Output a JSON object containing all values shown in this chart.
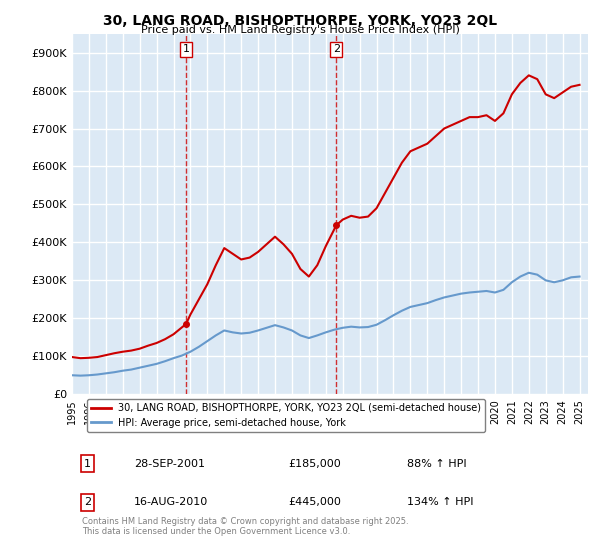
{
  "title": "30, LANG ROAD, BISHOPTHORPE, YORK, YO23 2QL",
  "subtitle": "Price paid vs. HM Land Registry's House Price Index (HPI)",
  "xlabel": "",
  "ylabel": "",
  "background_color": "#dce9f5",
  "plot_bg_color": "#dce9f5",
  "grid_color": "#ffffff",
  "ylim": [
    0,
    950000
  ],
  "yticks": [
    0,
    100000,
    200000,
    300000,
    400000,
    500000,
    600000,
    700000,
    800000,
    900000
  ],
  "ytick_labels": [
    "£0",
    "£100K",
    "£200K",
    "£300K",
    "£400K",
    "£500K",
    "£600K",
    "£700K",
    "£800K",
    "£900K"
  ],
  "xlim_start": 1995.0,
  "xlim_end": 2025.5,
  "sale1_x": 2001.74,
  "sale1_y": 185000,
  "sale1_label": "1",
  "sale1_date": "28-SEP-2001",
  "sale1_price": "£185,000",
  "sale1_hpi": "88% ↑ HPI",
  "sale2_x": 2010.62,
  "sale2_y": 445000,
  "sale2_label": "2",
  "sale2_date": "16-AUG-2010",
  "sale2_price": "£445,000",
  "sale2_hpi": "134% ↑ HPI",
  "legend_line1": "30, LANG ROAD, BISHOPTHORPE, YORK, YO23 2QL (semi-detached house)",
  "legend_line2": "HPI: Average price, semi-detached house, York",
  "footer": "Contains HM Land Registry data © Crown copyright and database right 2025.\nThis data is licensed under the Open Government Licence v3.0.",
  "red_line_color": "#cc0000",
  "blue_line_color": "#6699cc",
  "hpi_red_points_x": [
    1995.0,
    1995.5,
    1996.0,
    1996.5,
    1997.0,
    1997.5,
    1998.0,
    1998.5,
    1999.0,
    1999.5,
    2000.0,
    2000.5,
    2001.0,
    2001.74,
    2002.0,
    2002.5,
    2003.0,
    2003.5,
    2004.0,
    2004.5,
    2005.0,
    2005.5,
    2006.0,
    2006.5,
    2007.0,
    2007.5,
    2008.0,
    2008.5,
    2009.0,
    2009.5,
    2010.0,
    2010.62,
    2011.0,
    2011.5,
    2012.0,
    2012.5,
    2013.0,
    2013.5,
    2014.0,
    2014.5,
    2015.0,
    2015.5,
    2016.0,
    2016.5,
    2017.0,
    2017.5,
    2018.0,
    2018.5,
    2019.0,
    2019.5,
    2020.0,
    2020.5,
    2021.0,
    2021.5,
    2022.0,
    2022.5,
    2023.0,
    2023.5,
    2024.0,
    2024.5,
    2025.0
  ],
  "hpi_red_points_y": [
    98000,
    95000,
    96000,
    98000,
    103000,
    108000,
    112000,
    115000,
    120000,
    128000,
    135000,
    145000,
    158000,
    185000,
    210000,
    250000,
    290000,
    340000,
    385000,
    370000,
    355000,
    360000,
    375000,
    395000,
    415000,
    395000,
    370000,
    330000,
    310000,
    340000,
    390000,
    445000,
    460000,
    470000,
    465000,
    468000,
    490000,
    530000,
    570000,
    610000,
    640000,
    650000,
    660000,
    680000,
    700000,
    710000,
    720000,
    730000,
    730000,
    735000,
    720000,
    740000,
    790000,
    820000,
    840000,
    830000,
    790000,
    780000,
    795000,
    810000,
    815000
  ],
  "hpi_blue_points_x": [
    1995.0,
    1995.5,
    1996.0,
    1996.5,
    1997.0,
    1997.5,
    1998.0,
    1998.5,
    1999.0,
    1999.5,
    2000.0,
    2000.5,
    2001.0,
    2001.5,
    2002.0,
    2002.5,
    2003.0,
    2003.5,
    2004.0,
    2004.5,
    2005.0,
    2005.5,
    2006.0,
    2006.5,
    2007.0,
    2007.5,
    2008.0,
    2008.5,
    2009.0,
    2009.5,
    2010.0,
    2010.5,
    2011.0,
    2011.5,
    2012.0,
    2012.5,
    2013.0,
    2013.5,
    2014.0,
    2014.5,
    2015.0,
    2015.5,
    2016.0,
    2016.5,
    2017.0,
    2017.5,
    2018.0,
    2018.5,
    2019.0,
    2019.5,
    2020.0,
    2020.5,
    2021.0,
    2021.5,
    2022.0,
    2022.5,
    2023.0,
    2023.5,
    2024.0,
    2024.5,
    2025.0
  ],
  "hpi_blue_points_y": [
    50000,
    49000,
    50000,
    52000,
    55000,
    58000,
    62000,
    65000,
    70000,
    75000,
    80000,
    87000,
    95000,
    102000,
    112000,
    125000,
    140000,
    155000,
    168000,
    163000,
    160000,
    162000,
    168000,
    175000,
    182000,
    176000,
    168000,
    155000,
    148000,
    155000,
    163000,
    170000,
    175000,
    178000,
    176000,
    177000,
    183000,
    195000,
    208000,
    220000,
    230000,
    235000,
    240000,
    248000,
    255000,
    260000,
    265000,
    268000,
    270000,
    272000,
    268000,
    275000,
    295000,
    310000,
    320000,
    315000,
    300000,
    295000,
    300000,
    308000,
    310000
  ]
}
